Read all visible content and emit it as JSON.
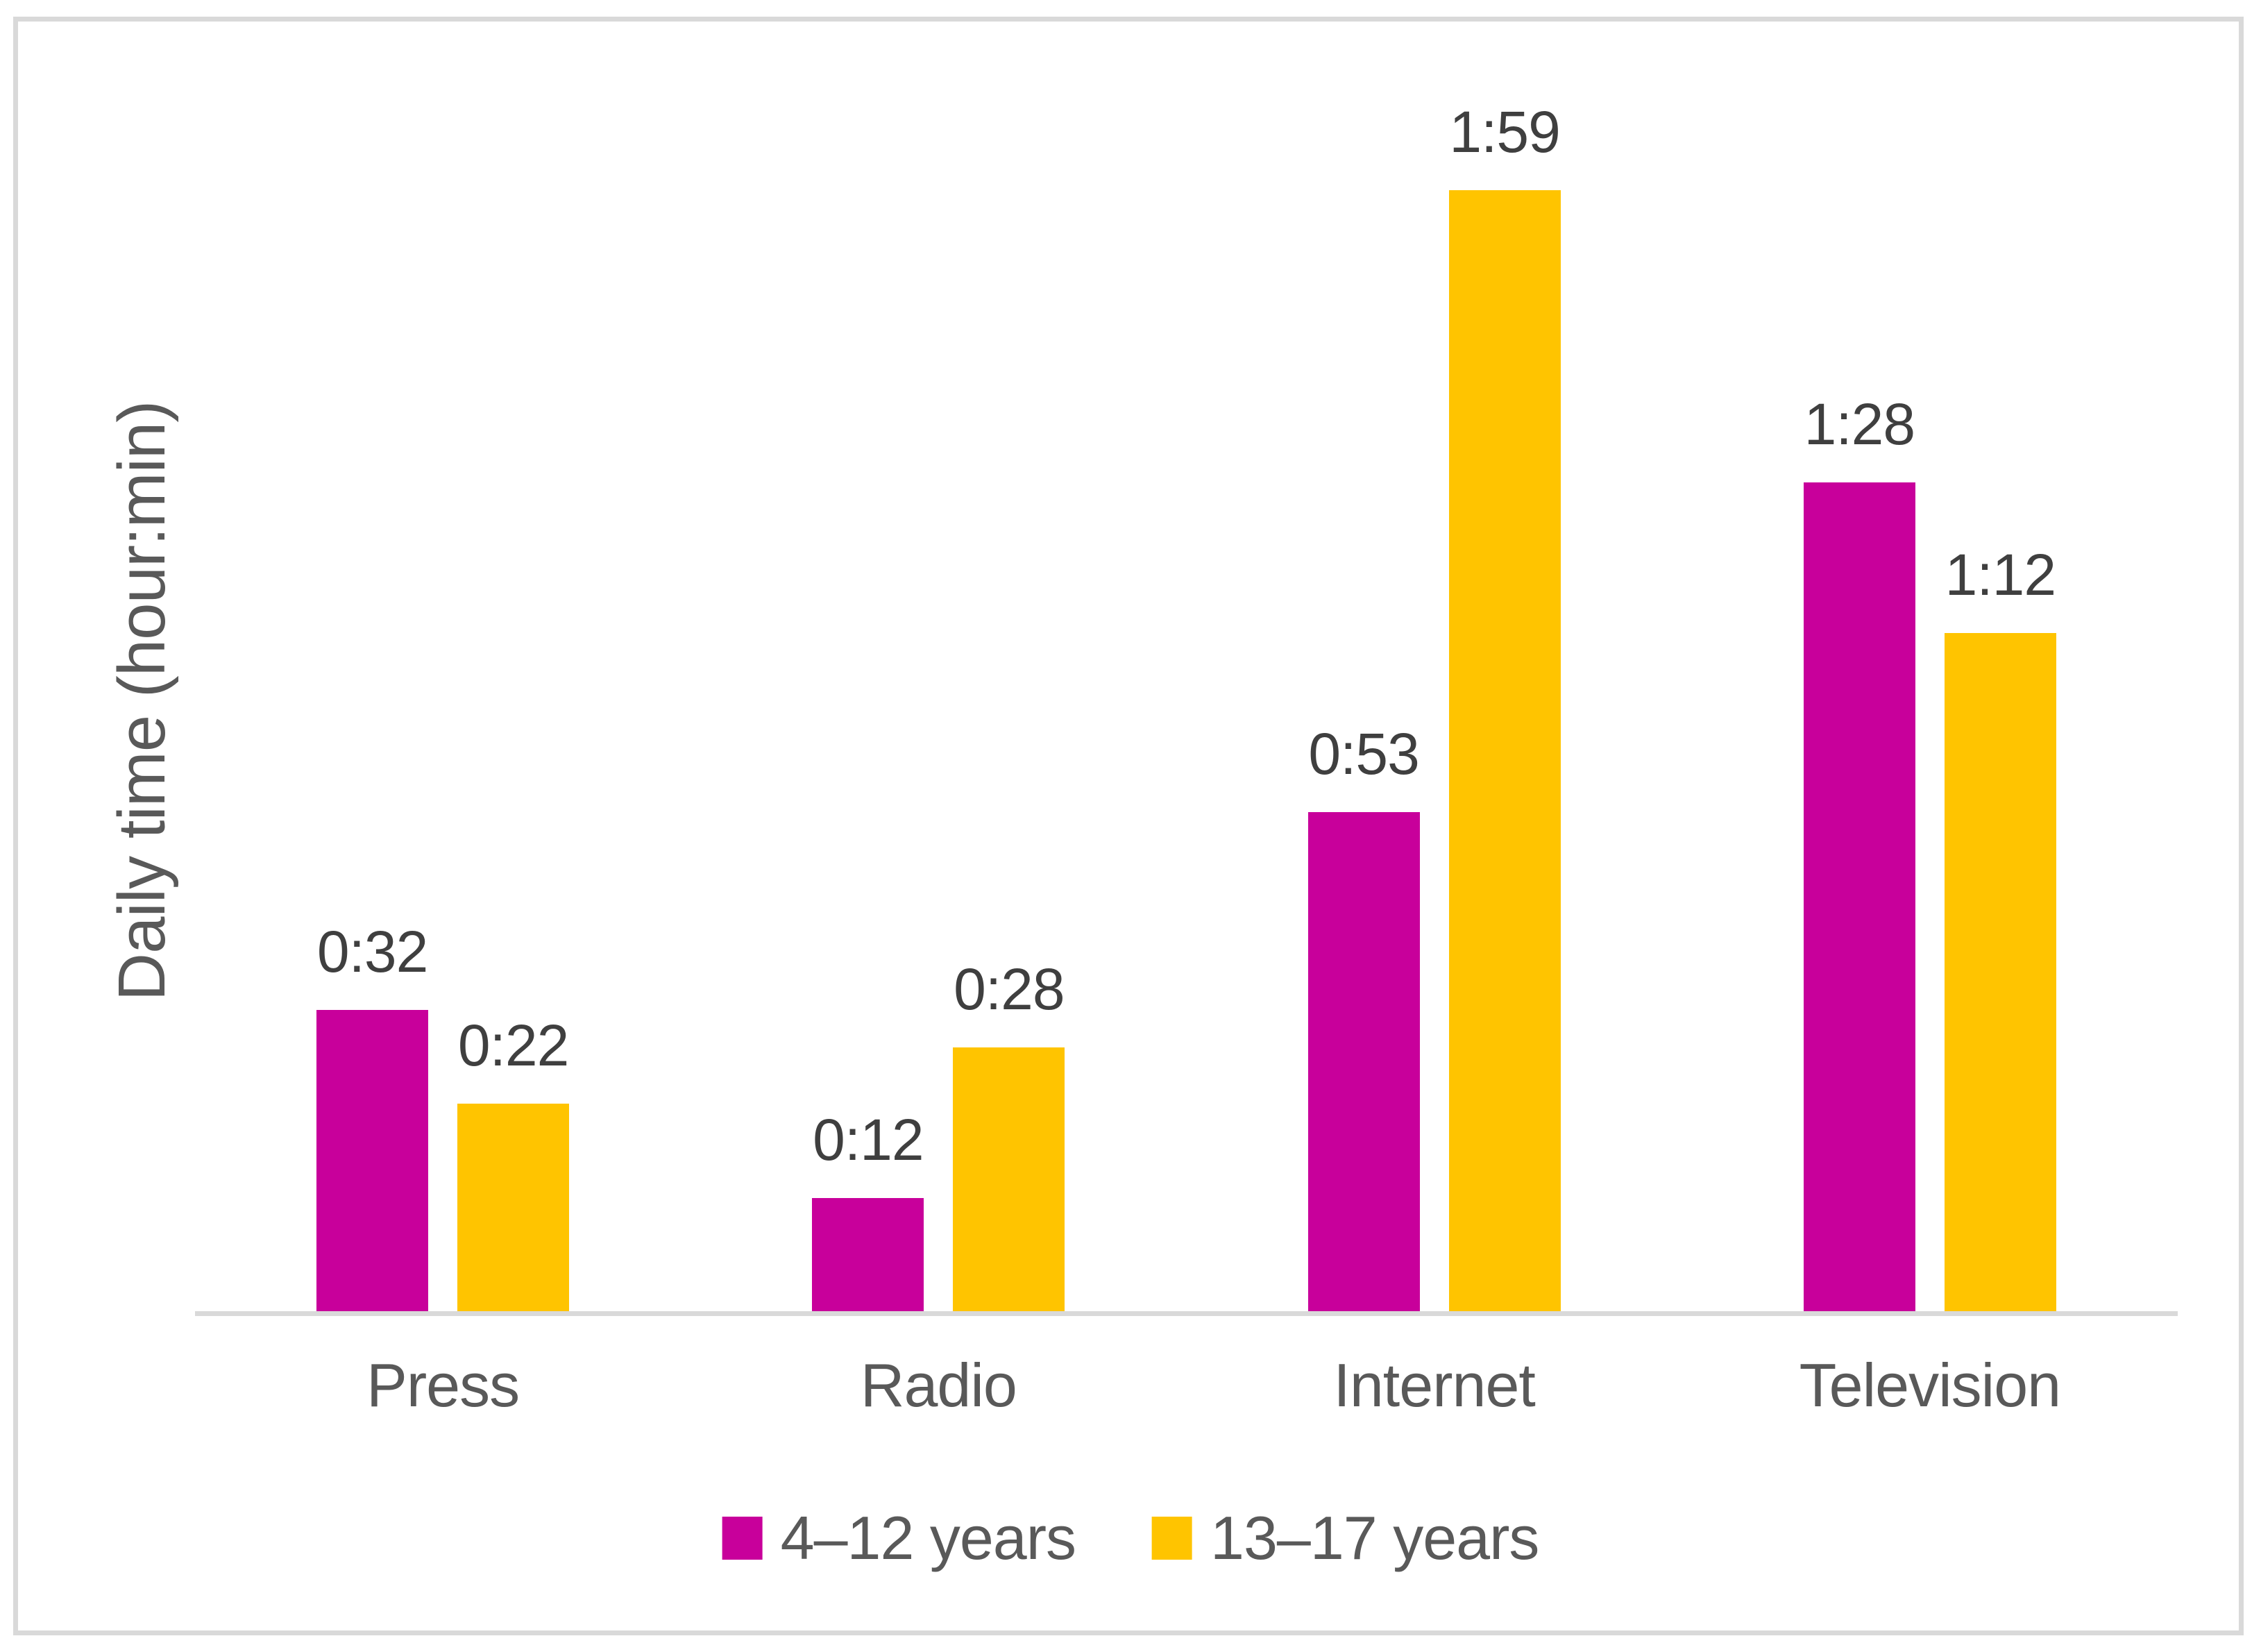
{
  "figure": {
    "background_color": "#FFFFFF",
    "frame_border_color": "#D9D9D9",
    "axis_line_color": "#D9D9D9",
    "data_label_color": "#3F3F3F",
    "axis_text_color": "#595959"
  },
  "chart_data": {
    "type": "bar",
    "title": "",
    "xlabel": "",
    "ylabel": "Daily time (hour:min)",
    "categories": [
      "Press",
      "Radio",
      "Internet",
      "Television"
    ],
    "series": [
      {
        "name": "4–12 years",
        "color": "#C8009B",
        "values_minutes": [
          32,
          12,
          53,
          88
        ],
        "labels": [
          "0:32",
          "0:12",
          "0:53",
          "1:28"
        ]
      },
      {
        "name": "13–17 years",
        "color": "#FFC400",
        "values_minutes": [
          22,
          28,
          119,
          72
        ],
        "labels": [
          "0:22",
          "0:28",
          "1:59",
          "1:12"
        ]
      }
    ],
    "ylim_minutes": [
      0,
      120
    ],
    "y_axis_ticks_visible": false,
    "gridlines": false,
    "data_labels_visible": true,
    "legend_position": "bottom"
  }
}
